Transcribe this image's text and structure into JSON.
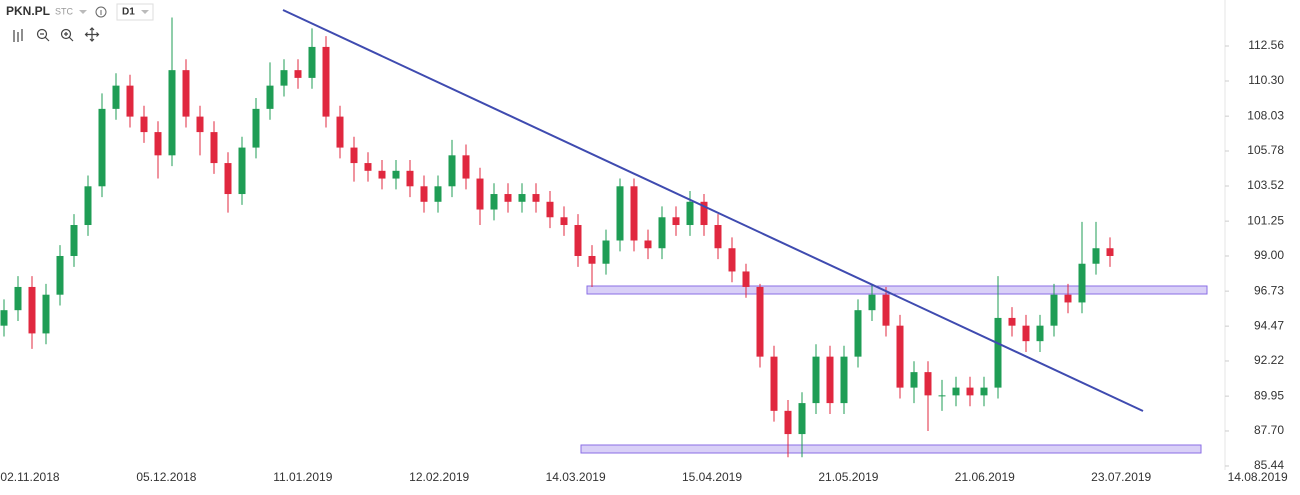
{
  "header": {
    "symbol": "PKN.PL",
    "market": "STC",
    "interval": "D1"
  },
  "chart_data": {
    "type": "candlestick",
    "up_color": "#1f9d55",
    "down_color": "#e0283f",
    "ylim": [
      85.18,
      115.53
    ],
    "yticks": [
      85.44,
      {
        "value": 87.7,
        "label": "87.70"
      },
      89.95,
      92.22,
      94.47,
      96.73,
      {
        "value": 99,
        "label": "99.00"
      },
      101.25,
      103.52,
      105.78,
      108.03,
      {
        "value": 110.3,
        "label": "110.30"
      },
      112.56
    ],
    "xticks": [
      "02.11.2018",
      "05.12.2018",
      "11.01.2019",
      "12.02.2019",
      "14.03.2019",
      "15.04.2019",
      "21.05.2019",
      "21.06.2019",
      "23.07.2019",
      "14.08.2019"
    ],
    "open": [
      94.5,
      95.5,
      97,
      94,
      96.5,
      99,
      101,
      103.5,
      108.5,
      110,
      108,
      107,
      105.5,
      111,
      108,
      107,
      105,
      103,
      106,
      108.5,
      110,
      111,
      110.5,
      112.5,
      108,
      106,
      105,
      104.5,
      104,
      104.5,
      103.5,
      102.5,
      103.5,
      105.5,
      104,
      102,
      103,
      102.5,
      103,
      102.5,
      101.5,
      101,
      99,
      98.5,
      100,
      103.5,
      100,
      99.5,
      101.5,
      101,
      102.5,
      101,
      99.5,
      98,
      97,
      92.5,
      89,
      87.5,
      89.5,
      92.5,
      89.5,
      92.5,
      95.5,
      96.5,
      94.5,
      90.5,
      91.5,
      90,
      90,
      90.5,
      90,
      90.5,
      95,
      94.5,
      93.5,
      94.5,
      96.5,
      96,
      98.5,
      99.5
    ],
    "high": [
      96.2,
      97.7,
      97.7,
      97.2,
      99.7,
      101.7,
      104.2,
      109.5,
      110.8,
      110.7,
      108.7,
      107.7,
      114.4,
      111.7,
      108.7,
      107.7,
      105.7,
      106.7,
      109.2,
      111.5,
      111.7,
      111.7,
      113.7,
      113.2,
      108.7,
      106.7,
      105.7,
      105.2,
      105.2,
      105.2,
      104.2,
      104.2,
      106.5,
      106.2,
      104.7,
      103.7,
      103.7,
      103.7,
      103.7,
      103.2,
      102.2,
      101.7,
      99.7,
      100.7,
      104,
      104,
      100.7,
      102.2,
      102.2,
      103.2,
      103,
      101.7,
      100.2,
      98.5,
      97.2,
      93.2,
      89.7,
      90.2,
      93.3,
      93.2,
      93.2,
      96.2,
      97.2,
      97,
      95.2,
      92.2,
      92.2,
      91,
      91.2,
      91.2,
      91.2,
      97.7,
      95.7,
      95.2,
      95.2,
      97.2,
      97.2,
      101.2,
      101.2,
      100.2
    ],
    "low": [
      93.8,
      94.8,
      93,
      93.3,
      95.8,
      98.3,
      100.3,
      102.8,
      107.8,
      107.3,
      106.3,
      104,
      104.8,
      107.3,
      105.5,
      104.3,
      101.8,
      102.3,
      105.3,
      107.8,
      109.3,
      109.8,
      109.8,
      107.3,
      105.3,
      103.8,
      103.8,
      103.3,
      103.3,
      102.8,
      101.8,
      101.8,
      102.8,
      103.3,
      101,
      101.3,
      101.8,
      101.8,
      101.8,
      100.8,
      100.3,
      98.3,
      97,
      97.8,
      99.3,
      99.3,
      98.8,
      98.8,
      100.3,
      100.3,
      100.3,
      98.8,
      97.3,
      96.3,
      91.8,
      88.3,
      86,
      86,
      88.8,
      88.8,
      88.8,
      91.8,
      94.8,
      93.8,
      89.8,
      89.5,
      87.7,
      89,
      89.3,
      89.3,
      89.3,
      89.8,
      93.8,
      92.8,
      92.8,
      93.8,
      95.3,
      95.3,
      97.8,
      98.3
    ],
    "close": [
      95.5,
      97,
      94,
      96.5,
      99,
      101,
      103.5,
      108.5,
      110,
      108,
      107,
      105.5,
      111,
      108,
      107,
      105,
      103,
      106,
      108.5,
      110,
      111,
      110.5,
      112.5,
      108,
      106,
      105,
      104.5,
      104,
      104.5,
      103.5,
      102.5,
      103.5,
      105.5,
      104,
      102,
      103,
      102.5,
      103,
      102.5,
      101.5,
      101,
      99,
      98.5,
      100,
      103.5,
      100,
      99.5,
      101.5,
      101,
      102.5,
      101,
      99.5,
      98,
      97,
      92.5,
      89,
      87.5,
      89.5,
      92.5,
      89.5,
      92.5,
      95.5,
      96.5,
      94.5,
      90.5,
      91.5,
      90,
      90,
      90.5,
      90,
      90.5,
      95,
      94.5,
      93.5,
      94.5,
      96.5,
      96,
      98.5,
      99.5,
      99
    ]
  }
}
